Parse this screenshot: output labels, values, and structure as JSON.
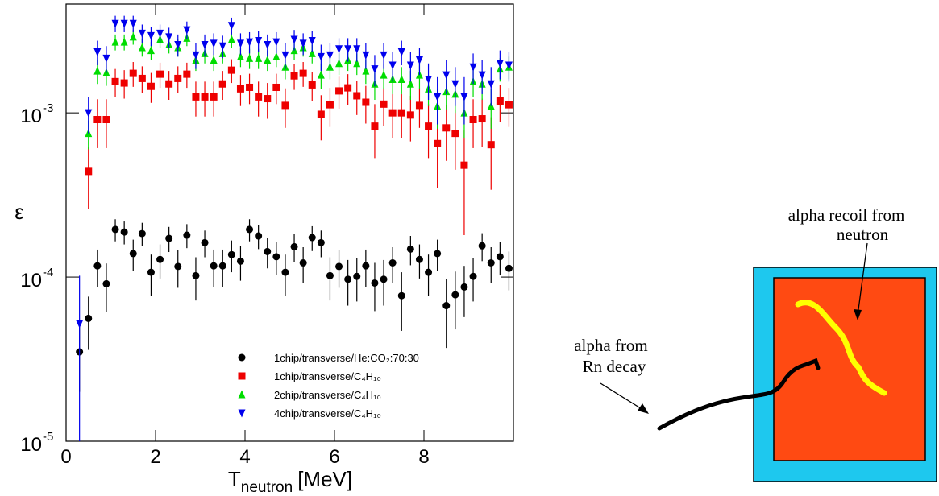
{
  "chart_data": {
    "type": "scatter",
    "y_label": "ε",
    "x_label": {
      "main": "T",
      "sub": "neutron",
      "rest": "[MeV]"
    },
    "xlim": [
      0,
      10
    ],
    "xticks": [
      0,
      2,
      4,
      6,
      8
    ],
    "ylim": [
      1e-05,
      0.0046
    ],
    "log_y": true,
    "yticks": [
      {
        "value": 1e-05,
        "label": "10",
        "exponent": "-5"
      },
      {
        "value": 0.0001,
        "label": "10",
        "exponent": "-4"
      },
      {
        "value": 0.001,
        "label": "10",
        "exponent": "-3"
      }
    ],
    "legend": "lower-center",
    "series": [
      {
        "name": "1chip/transverse/He:CO₂:70:30",
        "color": "#000000",
        "marker": "circle",
        "x": [
          0.3,
          0.5,
          0.7,
          0.9,
          1.1,
          1.3,
          1.5,
          1.7,
          1.9,
          2.1,
          2.3,
          2.5,
          2.7,
          2.9,
          3.1,
          3.3,
          3.5,
          3.7,
          3.9,
          4.1,
          4.3,
          4.5,
          4.7,
          4.9,
          5.1,
          5.3,
          5.5,
          5.7,
          5.9,
          6.1,
          6.3,
          6.5,
          6.7,
          6.9,
          7.1,
          7.3,
          7.5,
          7.7,
          7.9,
          8.1,
          8.3,
          8.5,
          8.7,
          8.9,
          9.1,
          9.3,
          9.5,
          9.7,
          9.9
        ],
        "values": [
          3.5e-05,
          5.6e-05,
          0.000117,
          9.1e-05,
          0.000195,
          0.000188,
          0.000139,
          0.000184,
          0.000107,
          0.000128,
          0.000172,
          0.000116,
          0.00018,
          0.000102,
          0.000162,
          0.000117,
          0.000117,
          0.000137,
          0.000125,
          0.000195,
          0.000178,
          0.000143,
          0.000133,
          0.000107,
          0.000153,
          0.000122,
          0.000174,
          0.000162,
          0.000102,
          0.000116,
          9.7e-05,
          0.000101,
          0.000117,
          9.2e-05,
          9.7e-05,
          0.000122,
          7.7e-05,
          0.000148,
          0.000128,
          0.000107,
          0.000139,
          6.7e-05,
          7.8e-05,
          8.7e-05,
          0.000101,
          0.000155,
          0.000122,
          0.000133,
          0.000113
        ],
        "errors": [
          1.5e-05,
          2e-05,
          3e-05,
          3e-05,
          3e-05,
          3e-05,
          3e-05,
          3e-05,
          3e-05,
          3e-05,
          3e-05,
          3e-05,
          3e-05,
          3e-05,
          3e-05,
          3e-05,
          3e-05,
          3e-05,
          3e-05,
          3e-05,
          3e-05,
          3e-05,
          3e-05,
          3e-05,
          3e-05,
          3e-05,
          3e-05,
          3e-05,
          3e-05,
          3e-05,
          3e-05,
          3e-05,
          3e-05,
          3e-05,
          3e-05,
          3e-05,
          3e-05,
          3e-05,
          3e-05,
          3e-05,
          3e-05,
          3e-05,
          3e-05,
          3e-05,
          3e-05,
          3e-05,
          3e-05,
          3e-05,
          3e-05
        ]
      },
      {
        "name": "1chip/transverse/C₄H₁₀",
        "color": "#ee0000",
        "marker": "square",
        "x": [
          0.5,
          0.7,
          0.9,
          1.1,
          1.3,
          1.5,
          1.7,
          1.9,
          2.1,
          2.3,
          2.5,
          2.7,
          2.9,
          3.1,
          3.3,
          3.5,
          3.7,
          3.9,
          4.1,
          4.3,
          4.5,
          4.7,
          4.9,
          5.1,
          5.3,
          5.5,
          5.7,
          5.9,
          6.1,
          6.3,
          6.5,
          6.7,
          6.9,
          7.1,
          7.3,
          7.5,
          7.7,
          7.9,
          8.1,
          8.3,
          8.5,
          8.7,
          8.9,
          9.1,
          9.3,
          9.5,
          9.7,
          9.9
        ],
        "values": [
          0.00044,
          0.00091,
          0.00091,
          0.00155,
          0.00152,
          0.00174,
          0.00162,
          0.00145,
          0.00172,
          0.0015,
          0.00162,
          0.00172,
          0.00125,
          0.00125,
          0.00125,
          0.0015,
          0.00182,
          0.0014,
          0.00143,
          0.00125,
          0.00122,
          0.00143,
          0.00111,
          0.00168,
          0.00174,
          0.00148,
          0.00098,
          0.00112,
          0.00136,
          0.00142,
          0.00127,
          0.00116,
          0.00083,
          0.00113,
          0.001,
          0.001,
          0.00097,
          0.00111,
          0.00083,
          0.00065,
          0.00081,
          0.00075,
          0.00048,
          0.00091,
          0.00092,
          0.00064,
          0.00118,
          0.00112
        ],
        "errors": [
          0.00018,
          0.0003,
          0.0003,
          0.0003,
          0.0003,
          0.0003,
          0.0003,
          0.0003,
          0.0003,
          0.0003,
          0.0003,
          0.0003,
          0.0003,
          0.0003,
          0.0003,
          0.0003,
          0.0003,
          0.0003,
          0.0003,
          0.0003,
          0.0003,
          0.0003,
          0.0003,
          0.0003,
          0.0003,
          0.0003,
          0.0003,
          0.0003,
          0.0003,
          0.0003,
          0.0003,
          0.0003,
          0.0003,
          0.0003,
          0.0003,
          0.0003,
          0.0003,
          0.0003,
          0.0003,
          0.0003,
          0.0003,
          0.0003,
          0.0003,
          0.0003,
          0.0003,
          0.0003,
          0.0003,
          0.0003
        ]
      },
      {
        "name": "2chip/transverse/C₄H₁₀",
        "color": "#00dd00",
        "marker": "triangle-up",
        "x": [
          0.5,
          0.7,
          0.9,
          1.1,
          1.3,
          1.5,
          1.7,
          1.9,
          2.1,
          2.3,
          2.5,
          2.7,
          2.9,
          3.1,
          3.3,
          3.5,
          3.7,
          3.9,
          4.1,
          4.3,
          4.5,
          4.7,
          4.9,
          5.1,
          5.3,
          5.5,
          5.7,
          5.9,
          6.1,
          6.3,
          6.5,
          6.7,
          6.9,
          7.1,
          7.3,
          7.5,
          7.7,
          7.9,
          8.1,
          8.3,
          8.5,
          8.7,
          8.9,
          9.1,
          9.3,
          9.5,
          9.7,
          9.9
        ],
        "values": [
          0.00075,
          0.0018,
          0.00176,
          0.0027,
          0.0027,
          0.0029,
          0.0025,
          0.0024,
          0.0028,
          0.0026,
          0.0025,
          0.00285,
          0.0021,
          0.0023,
          0.0021,
          0.0023,
          0.0028,
          0.0022,
          0.00215,
          0.00215,
          0.0021,
          0.0022,
          0.0019,
          0.0024,
          0.0025,
          0.0023,
          0.0017,
          0.0019,
          0.002,
          0.0021,
          0.002,
          0.0018,
          0.0015,
          0.0017,
          0.0016,
          0.0016,
          0.0015,
          0.0017,
          0.0014,
          0.0011,
          0.00135,
          0.0013,
          0.001,
          0.00155,
          0.0015,
          0.0011,
          0.00185,
          0.0019
        ],
        "errors": [
          0.00015,
          0.0003,
          0.0003,
          0.0003,
          0.0003,
          0.0003,
          0.0003,
          0.0003,
          0.0003,
          0.0003,
          0.0003,
          0.0003,
          0.0003,
          0.0003,
          0.0003,
          0.0003,
          0.0003,
          0.0003,
          0.0003,
          0.0003,
          0.0003,
          0.0003,
          0.0003,
          0.0003,
          0.0003,
          0.0003,
          0.0003,
          0.0003,
          0.0003,
          0.0003,
          0.0003,
          0.0003,
          0.0003,
          0.0003,
          0.0003,
          0.0003,
          0.0003,
          0.0003,
          0.0003,
          0.0003,
          0.0003,
          0.0003,
          0.0003,
          0.0003,
          0.0003,
          0.0003,
          0.0003,
          0.0003
        ]
      },
      {
        "name": "4chip/transverse/C₄H₁₀",
        "color": "#0000ee",
        "marker": "triangle-down",
        "x": [
          0.3,
          0.5,
          0.7,
          0.9,
          1.1,
          1.3,
          1.5,
          1.7,
          1.9,
          2.1,
          2.3,
          2.5,
          2.7,
          2.9,
          3.1,
          3.3,
          3.5,
          3.7,
          3.9,
          4.1,
          4.3,
          4.5,
          4.7,
          4.9,
          5.1,
          5.3,
          5.5,
          5.7,
          5.9,
          6.1,
          6.3,
          6.5,
          6.7,
          6.9,
          7.1,
          7.3,
          7.5,
          7.7,
          7.9,
          8.1,
          8.3,
          8.5,
          8.7,
          8.9,
          9.1,
          9.3,
          9.5,
          9.7,
          9.9
        ],
        "values": [
          5.2e-05,
          0.001,
          0.00235,
          0.00215,
          0.0035,
          0.0035,
          0.0035,
          0.00305,
          0.00295,
          0.00305,
          0.0029,
          0.0026,
          0.0032,
          0.00225,
          0.0026,
          0.00265,
          0.00255,
          0.0034,
          0.00265,
          0.0027,
          0.00275,
          0.0026,
          0.0027,
          0.00225,
          0.0028,
          0.00265,
          0.00275,
          0.0022,
          0.00225,
          0.00245,
          0.00245,
          0.00245,
          0.00225,
          0.00185,
          0.00225,
          0.00195,
          0.00235,
          0.00195,
          0.0021,
          0.0016,
          0.00125,
          0.0017,
          0.0015,
          0.00125,
          0.0019,
          0.0017,
          0.0015,
          0.002,
          0.00195
        ],
        "errors": [
          5e-05,
          0.00025,
          0.0004,
          0.0004,
          0.0004,
          0.0004,
          0.0004,
          0.0004,
          0.0004,
          0.0004,
          0.0004,
          0.0004,
          0.0004,
          0.0004,
          0.0004,
          0.0004,
          0.0004,
          0.0004,
          0.0004,
          0.0004,
          0.0004,
          0.0004,
          0.0004,
          0.0004,
          0.0004,
          0.0004,
          0.0004,
          0.0004,
          0.0004,
          0.0004,
          0.0004,
          0.0004,
          0.0004,
          0.0004,
          0.0004,
          0.0004,
          0.0004,
          0.0004,
          0.0004,
          0.0004,
          0.0004,
          0.0004,
          0.0004,
          0.0004,
          0.0004,
          0.0004,
          0.0004,
          0.0004,
          0.0004
        ]
      }
    ]
  },
  "diagram": {
    "labels": {
      "recoil": [
        "alpha recoil from",
        "neutron"
      ],
      "decay": [
        "alpha from",
        "Rn decay"
      ]
    }
  }
}
